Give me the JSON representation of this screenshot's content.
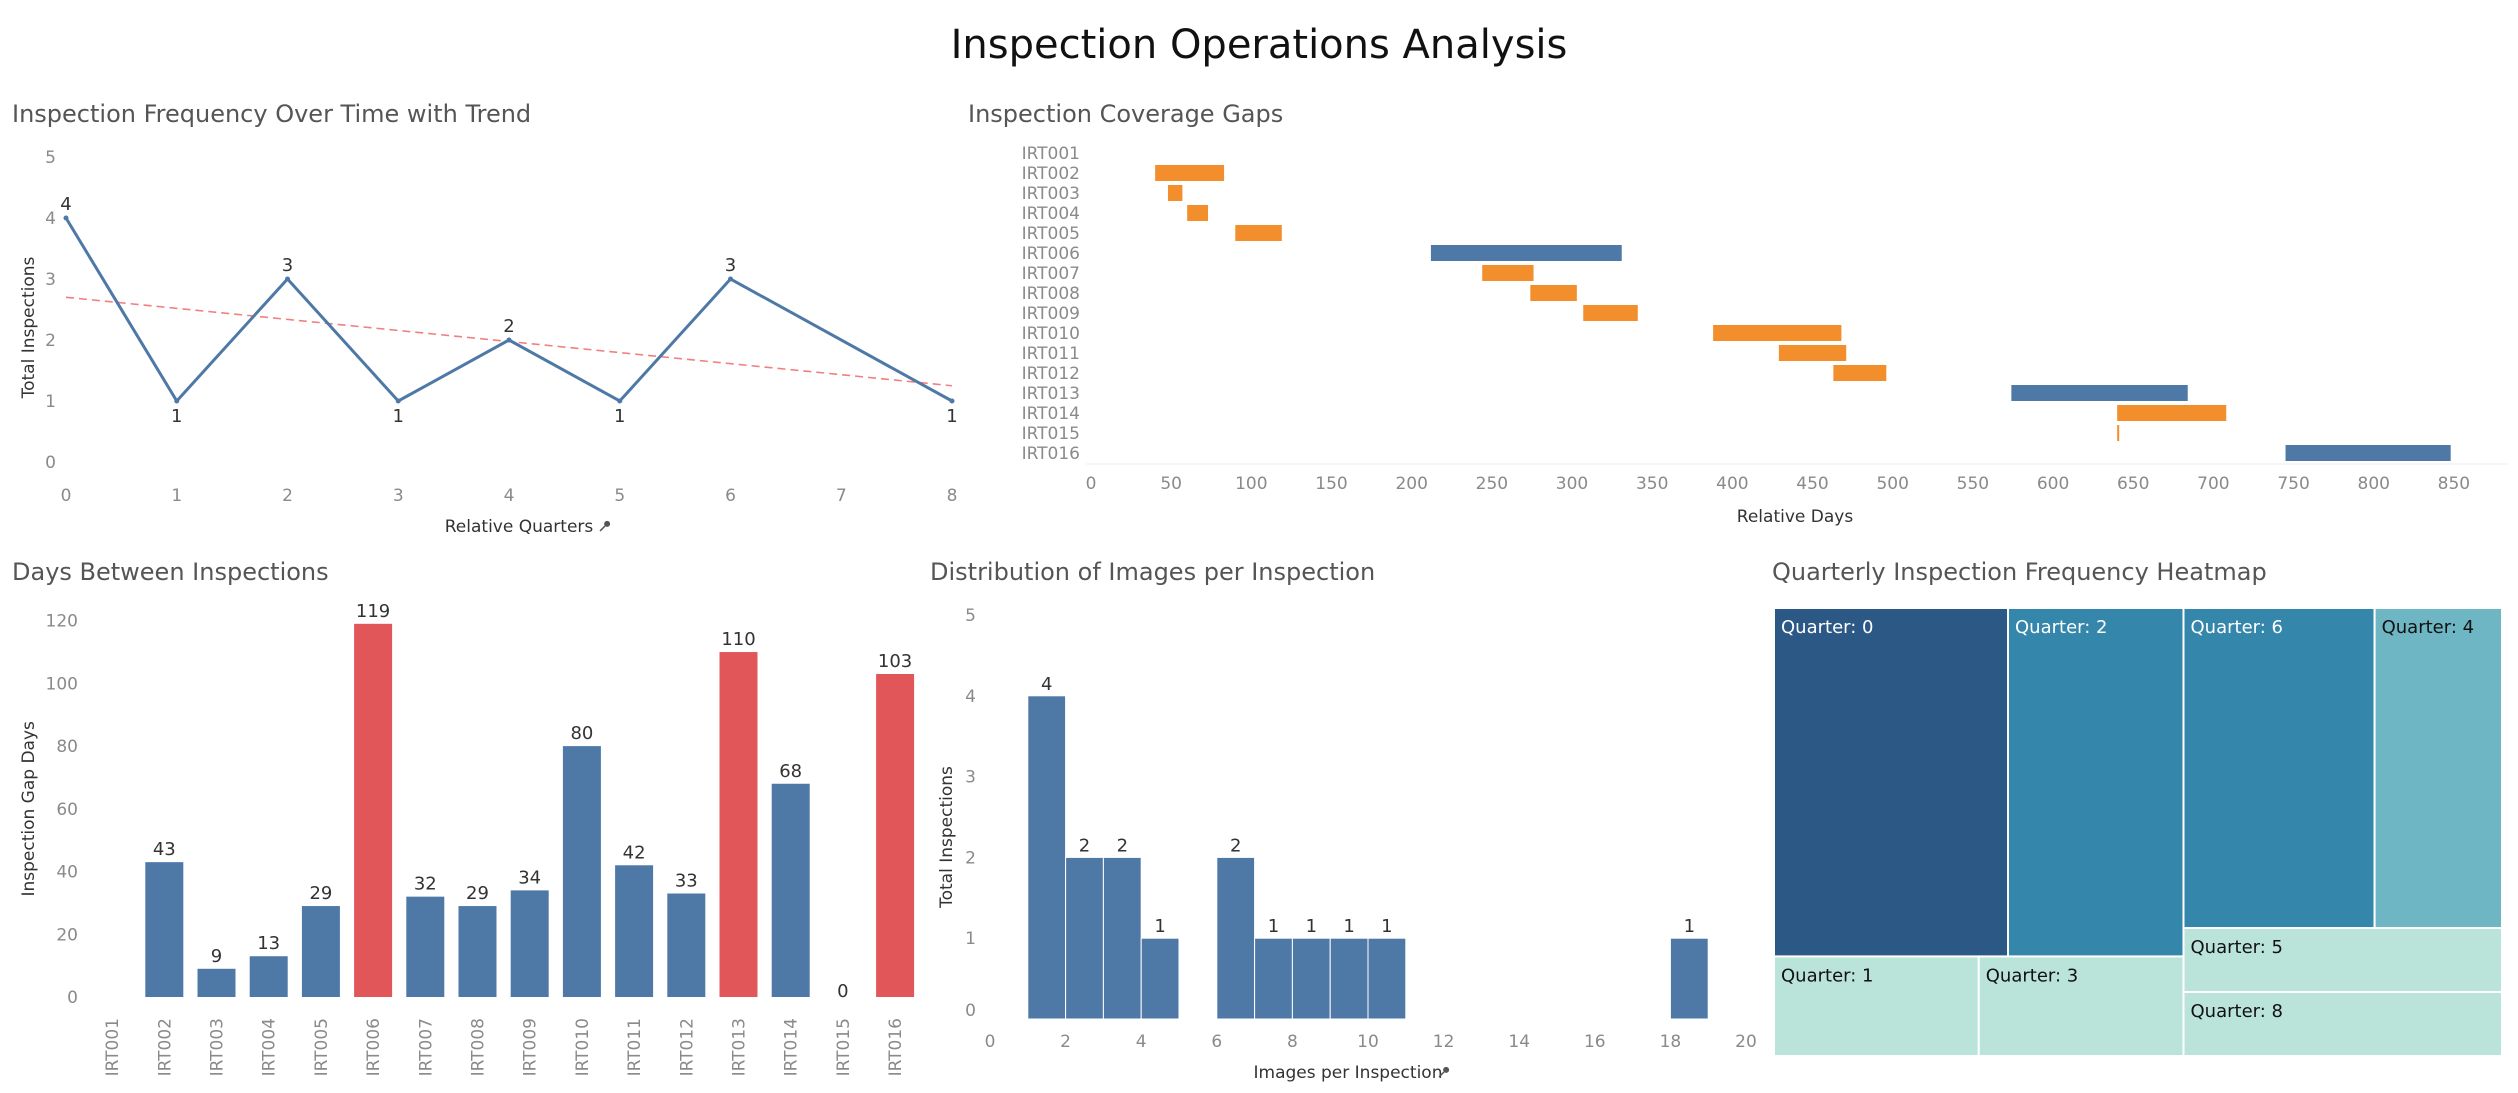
{
  "page": {
    "title": "Inspection Operations Analysis"
  },
  "colors": {
    "blue": "#4e79a7",
    "orange": "#f28e2b",
    "red": "#e15759",
    "trend": "#f08080"
  },
  "chart_data": [
    {
      "id": "frequency",
      "type": "line",
      "title": "Inspection Frequency Over Time with Trend",
      "xlabel": "Relative Quarters",
      "xlabel_icon": "pin-icon",
      "ylabel": "Total Inspections",
      "x": [
        0,
        1,
        2,
        3,
        4,
        5,
        6,
        7,
        8
      ],
      "points": [
        {
          "x": 0,
          "y": 4
        },
        {
          "x": 1,
          "y": 1
        },
        {
          "x": 2,
          "y": 3
        },
        {
          "x": 3,
          "y": 1
        },
        {
          "x": 4,
          "y": 2
        },
        {
          "x": 5,
          "y": 1
        },
        {
          "x": 6,
          "y": 3
        },
        {
          "x": 8,
          "y": 1
        }
      ],
      "trend": {
        "x0": 0,
        "y0": 2.7,
        "x1": 8,
        "y1": 1.25
      },
      "xlim": [
        0,
        8
      ],
      "ylim": [
        0,
        5
      ],
      "xticks": [
        0,
        1,
        2,
        3,
        4,
        5,
        6,
        7,
        8
      ],
      "yticks": [
        0,
        1,
        2,
        3,
        4,
        5
      ]
    },
    {
      "id": "coverage",
      "type": "bar",
      "orientation": "horizontal-range",
      "title": "Inspection Coverage Gaps",
      "xlabel": "Relative Days",
      "categories": [
        "IRT001",
        "IRT002",
        "IRT003",
        "IRT004",
        "IRT005",
        "IRT006",
        "IRT007",
        "IRT008",
        "IRT009",
        "IRT010",
        "IRT011",
        "IRT012",
        "IRT013",
        "IRT014",
        "IRT015",
        "IRT016"
      ],
      "ranges": [
        null,
        {
          "start": 40,
          "end": 83,
          "color": "orange"
        },
        {
          "start": 48,
          "end": 57,
          "color": "orange"
        },
        {
          "start": 60,
          "end": 73,
          "color": "orange"
        },
        {
          "start": 90,
          "end": 119,
          "color": "orange"
        },
        {
          "start": 212,
          "end": 331,
          "color": "blue"
        },
        {
          "start": 244,
          "end": 276,
          "color": "orange"
        },
        {
          "start": 274,
          "end": 303,
          "color": "orange"
        },
        {
          "start": 307,
          "end": 341,
          "color": "orange"
        },
        {
          "start": 388,
          "end": 468,
          "color": "orange"
        },
        {
          "start": 429,
          "end": 471,
          "color": "orange"
        },
        {
          "start": 463,
          "end": 496,
          "color": "orange"
        },
        {
          "start": 574,
          "end": 684,
          "color": "blue"
        },
        {
          "start": 640,
          "end": 708,
          "color": "orange"
        },
        {
          "start": 640,
          "end": 641,
          "color": "orange"
        },
        {
          "start": 745,
          "end": 848,
          "color": "blue"
        }
      ],
      "xlim": [
        0,
        880
      ],
      "xticks": [
        0,
        50,
        100,
        150,
        200,
        250,
        300,
        350,
        400,
        450,
        500,
        550,
        600,
        650,
        700,
        750,
        800,
        850
      ]
    },
    {
      "id": "gaps",
      "type": "bar",
      "title": "Days Between Inspections",
      "ylabel": "Inspection Gap Days",
      "categories": [
        "IRT001",
        "IRT002",
        "IRT003",
        "IRT004",
        "IRT005",
        "IRT006",
        "IRT007",
        "IRT008",
        "IRT009",
        "IRT010",
        "IRT011",
        "IRT012",
        "IRT013",
        "IRT014",
        "IRT015",
        "IRT016"
      ],
      "values": [
        null,
        43,
        9,
        13,
        29,
        119,
        32,
        29,
        34,
        80,
        42,
        33,
        110,
        68,
        0,
        103
      ],
      "colors": [
        "blue",
        "blue",
        "blue",
        "blue",
        "blue",
        "red",
        "blue",
        "blue",
        "blue",
        "blue",
        "blue",
        "blue",
        "red",
        "blue",
        "blue",
        "red"
      ],
      "ylim": [
        0,
        125
      ],
      "yticks": [
        0,
        20,
        40,
        60,
        80,
        100,
        120
      ]
    },
    {
      "id": "images",
      "type": "bar",
      "orientation": "histogram",
      "title": "Distribution of Images per Inspection",
      "xlabel": "Images per Inspection",
      "xlabel_icon": "pin-icon",
      "ylabel": "Total Inspections",
      "bins": [
        {
          "x0": 1,
          "x1": 2,
          "value": 4
        },
        {
          "x0": 2,
          "x1": 3,
          "value": 2
        },
        {
          "x0": 3,
          "x1": 4,
          "value": 2
        },
        {
          "x0": 4,
          "x1": 5,
          "value": 1
        },
        {
          "x0": 6,
          "x1": 7,
          "value": 2
        },
        {
          "x0": 7,
          "x1": 8,
          "value": 1
        },
        {
          "x0": 8,
          "x1": 9,
          "value": 1
        },
        {
          "x0": 9,
          "x1": 10,
          "value": 1
        },
        {
          "x0": 10,
          "x1": 11,
          "value": 1
        },
        {
          "x0": 18,
          "x1": 19,
          "value": 1
        }
      ],
      "xlim": [
        0,
        20
      ],
      "ylim": [
        0,
        5
      ],
      "xticks": [
        0,
        2,
        4,
        6,
        8,
        10,
        12,
        14,
        16,
        18,
        20
      ],
      "yticks": [
        0,
        1,
        2,
        3,
        4,
        5
      ]
    },
    {
      "id": "heatmap",
      "type": "heatmap",
      "title": "Quarterly Inspection Frequency Heatmap",
      "cells": [
        {
          "label": "Quarter: 0",
          "value": 4,
          "color": "#2c5885",
          "light_text": true
        },
        {
          "label": "Quarter: 2",
          "value": 3,
          "color": "#3586ab",
          "light_text": true
        },
        {
          "label": "Quarter: 6",
          "value": 3,
          "color": "#3586ab",
          "light_text": true
        },
        {
          "label": "Quarter: 4",
          "value": 2,
          "color": "#6eb6c4",
          "light_text": false
        },
        {
          "label": "Quarter: 1",
          "value": 1,
          "color": "#bae3d9",
          "light_text": false
        },
        {
          "label": "Quarter: 3",
          "value": 1,
          "color": "#bae3d9",
          "light_text": false
        },
        {
          "label": "Quarter: 5",
          "value": 1,
          "color": "#bae3d9",
          "light_text": false
        },
        {
          "label": "Quarter: 8",
          "value": 1,
          "color": "#bae3d9",
          "light_text": false
        }
      ]
    }
  ]
}
